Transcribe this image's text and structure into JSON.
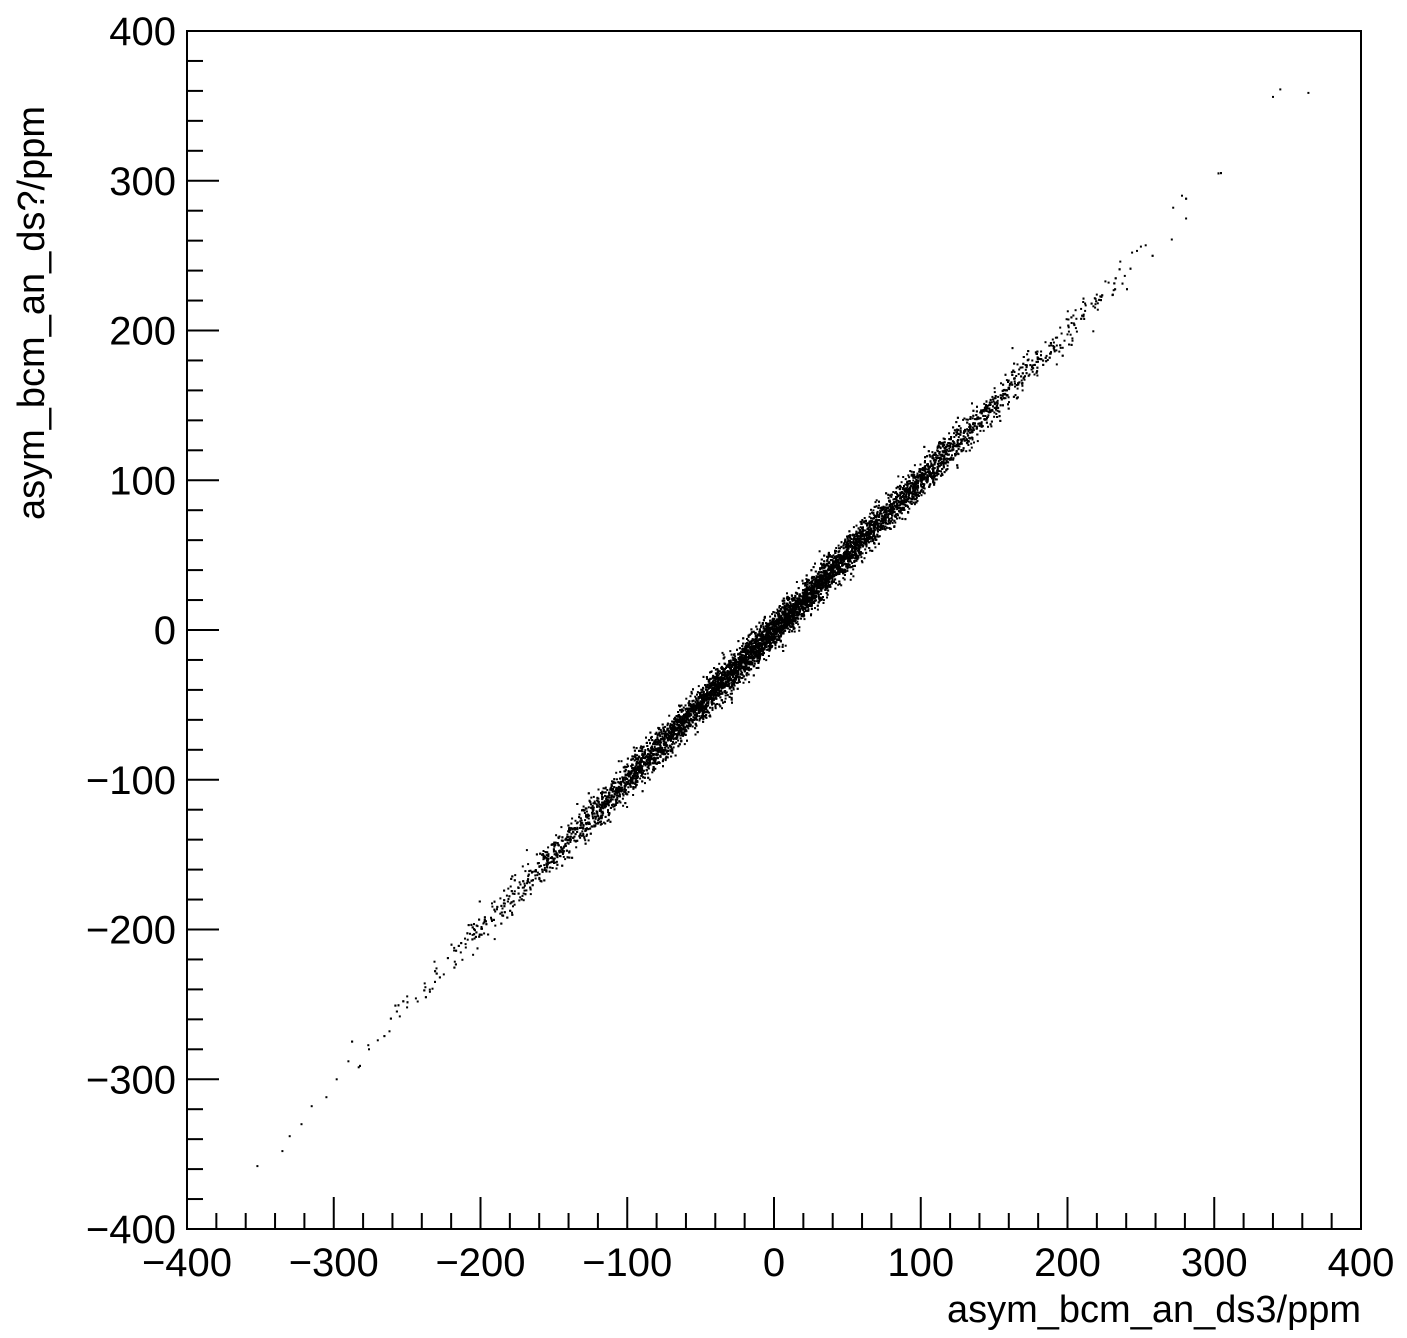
{
  "chart_data": {
    "type": "scatter",
    "title": "",
    "xlabel": "asym_bcm_an_ds3/ppm",
    "ylabel": "asym_bcm_an_ds?/ppm",
    "xlim": [
      -400,
      400
    ],
    "ylim": [
      -400,
      400
    ],
    "x_major_ticks": [
      -400,
      -300,
      -200,
      -100,
      0,
      100,
      200,
      300,
      400
    ],
    "y_major_ticks": [
      -400,
      -300,
      -200,
      -100,
      0,
      100,
      200,
      300,
      400
    ],
    "x_tick_labels": [
      "−400",
      "−300",
      "−200",
      "−100",
      "0",
      "100",
      "200",
      "300",
      "400"
    ],
    "y_tick_labels": [
      "−400",
      "−300",
      "−200",
      "−100",
      "0",
      "100",
      "200",
      "300",
      "400"
    ],
    "grid": false,
    "legend": "none",
    "marker_color": "#000000",
    "distribution": {
      "description_values": {
        "slope": 1.0,
        "intercept": 0,
        "x_mean": 0,
        "x_std": 85,
        "residual_std": 6
      }
    },
    "series": [
      {
        "points": [
          [
            -352,
            -358
          ],
          [
            -335,
            -348
          ],
          [
            -330,
            -338
          ],
          [
            -322,
            -330
          ],
          [
            -315,
            -318
          ],
          [
            -305,
            -312
          ],
          [
            -298,
            -300
          ],
          [
            -290,
            -288
          ],
          [
            -283,
            -292
          ],
          [
            -276,
            -280
          ],
          [
            -270,
            -274
          ],
          [
            -262,
            -268
          ],
          [
            -255,
            -258
          ],
          [
            -250,
            -252
          ],
          [
            -244,
            -246
          ],
          [
            -238,
            -236
          ],
          [
            -230,
            -226
          ],
          [
            -225,
            -230
          ],
          [
            -218,
            -214
          ],
          [
            -210,
            -212
          ],
          [
            -204,
            -206
          ],
          [
            -198,
            -196
          ],
          [
            -190,
            -188
          ],
          [
            -185,
            -186
          ],
          [
            -178,
            -176
          ],
          [
            -170,
            -174
          ],
          [
            -165,
            -162
          ],
          [
            -158,
            -160
          ],
          [
            -150,
            -148
          ],
          [
            -144,
            -146
          ],
          [
            -138,
            -136
          ],
          [
            -130,
            -132
          ],
          [
            -124,
            -122
          ],
          [
            -118,
            -120
          ],
          [
            -110,
            -108
          ],
          [
            -104,
            -106
          ],
          [
            -98,
            -96
          ],
          [
            -90,
            -92
          ],
          [
            -84,
            -82
          ],
          [
            -78,
            -80
          ],
          [
            -70,
            -68
          ],
          [
            -64,
            -66
          ],
          [
            -58,
            -56
          ],
          [
            -50,
            -52
          ],
          [
            -44,
            -42
          ],
          [
            -38,
            -40
          ],
          [
            -30,
            -28
          ],
          [
            -24,
            -26
          ],
          [
            -18,
            -16
          ],
          [
            -10,
            -12
          ],
          [
            -4,
            -2
          ],
          [
            2,
            4
          ],
          [
            8,
            6
          ],
          [
            14,
            16
          ],
          [
            20,
            18
          ],
          [
            26,
            28
          ],
          [
            32,
            30
          ],
          [
            38,
            40
          ],
          [
            44,
            42
          ],
          [
            50,
            52
          ],
          [
            56,
            54
          ],
          [
            62,
            64
          ],
          [
            68,
            66
          ],
          [
            74,
            76
          ],
          [
            80,
            78
          ],
          [
            86,
            88
          ],
          [
            92,
            90
          ],
          [
            98,
            100
          ],
          [
            104,
            102
          ],
          [
            110,
            112
          ],
          [
            116,
            114
          ],
          [
            122,
            124
          ],
          [
            128,
            126
          ],
          [
            134,
            136
          ],
          [
            140,
            138
          ],
          [
            146,
            148
          ],
          [
            152,
            150
          ],
          [
            158,
            160
          ],
          [
            164,
            166
          ],
          [
            170,
            168
          ],
          [
            176,
            180
          ],
          [
            182,
            186
          ],
          [
            190,
            194
          ],
          [
            196,
            198
          ],
          [
            204,
            210
          ],
          [
            212,
            218
          ],
          [
            220,
            224
          ],
          [
            228,
            232
          ],
          [
            236,
            246
          ],
          [
            244,
            252
          ],
          [
            250,
            256
          ],
          [
            272,
            282
          ],
          [
            278,
            290
          ],
          [
            340,
            356
          ],
          [
            345,
            361
          ]
        ]
      }
    ]
  }
}
